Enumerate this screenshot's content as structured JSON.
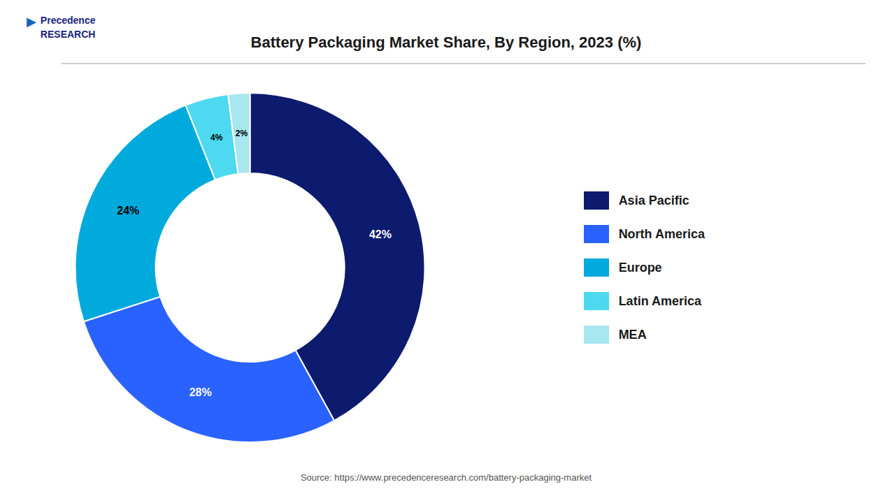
{
  "chart_data": {
    "type": "donut",
    "title": "Battery Packaging Market Share, By Region, 2023 (%)",
    "categories": [
      "Asia Pacific",
      "North America",
      "Europe",
      "Latin America",
      "MEA"
    ],
    "values": [
      42,
      28,
      24,
      4,
      2
    ],
    "value_labels": [
      "42%",
      "28%",
      "24%",
      "4%",
      "2%"
    ],
    "data_labels": true,
    "colors": [
      "#0d1b6e",
      "#2962ff",
      "#00aadd",
      "#4dd9f0",
      "#a8e6f0"
    ],
    "legend": "right",
    "annotations": [
      "▶",
      "Precedence",
      "RESEARCH",
      "Source: https://www.precedenceresearch.com/battery-packaging-market"
    ]
  }
}
